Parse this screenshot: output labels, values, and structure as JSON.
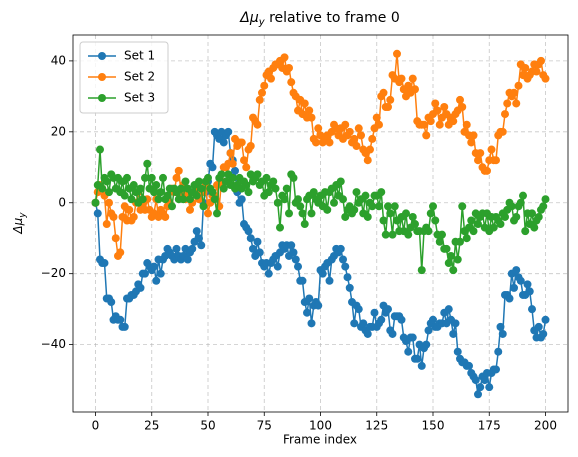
{
  "chart_data": {
    "type": "line",
    "title": {
      "symbol": "Δμ",
      "subscript": "y",
      "text": " relative to frame 0"
    },
    "xlabel": "Frame index",
    "ylabel": {
      "symbol": "Δμ",
      "subscript": "y"
    },
    "x": [
      0,
      1,
      2,
      3,
      4,
      5,
      6,
      7,
      8,
      9,
      10,
      11,
      12,
      13,
      14,
      15,
      16,
      17,
      18,
      19,
      20,
      21,
      22,
      23,
      24,
      25,
      26,
      27,
      28,
      29,
      30,
      31,
      32,
      33,
      34,
      35,
      36,
      37,
      38,
      39,
      40,
      41,
      42,
      43,
      44,
      45,
      46,
      47,
      48,
      49,
      50,
      51,
      52,
      53,
      54,
      55,
      56,
      57,
      58,
      59,
      60,
      61,
      62,
      63,
      64,
      65,
      66,
      67,
      68,
      69,
      70,
      71,
      72,
      73,
      74,
      75,
      76,
      77,
      78,
      79,
      80,
      81,
      82,
      83,
      84,
      85,
      86,
      87,
      88,
      89,
      90,
      91,
      92,
      93,
      94,
      95,
      96,
      97,
      98,
      99,
      100,
      101,
      102,
      103,
      104,
      105,
      106,
      107,
      108,
      109,
      110,
      111,
      112,
      113,
      114,
      115,
      116,
      117,
      118,
      119,
      120,
      121,
      122,
      123,
      124,
      125,
      126,
      127,
      128,
      129,
      130,
      131,
      132,
      133,
      134,
      135,
      136,
      137,
      138,
      139,
      140,
      141,
      142,
      143,
      144,
      145,
      146,
      147,
      148,
      149,
      150,
      151,
      152,
      153,
      154,
      155,
      156,
      157,
      158,
      159,
      160,
      161,
      162,
      163,
      164,
      165,
      166,
      167,
      168,
      169,
      170,
      171,
      172,
      173,
      174,
      175,
      176,
      177,
      178,
      179,
      180,
      181,
      182,
      183,
      184,
      185,
      186,
      187,
      188,
      189,
      190,
      191,
      192,
      193,
      194,
      195,
      196,
      197,
      198,
      199,
      200
    ],
    "series": [
      {
        "name": "Set 1",
        "color": "#1f77b4",
        "values": [
          0,
          -3,
          -16,
          -17,
          -17,
          -27,
          -27,
          -28,
          -33,
          -32,
          -33,
          -33,
          -35,
          -35,
          -27,
          -27,
          -26,
          -26,
          -25,
          -23,
          -24,
          -20,
          -20,
          -17,
          -18,
          -19,
          -18,
          -22,
          -16,
          -20,
          -16,
          -15,
          -13,
          -14,
          -15,
          -16,
          -13,
          -15,
          -16,
          -15,
          -13,
          -16,
          -14,
          -13,
          -11,
          -8,
          -10,
          -12,
          0,
          3,
          6,
          11,
          10,
          20,
          19,
          18,
          20,
          17,
          19,
          20,
          14,
          12,
          9,
          3,
          0,
          1,
          -6,
          -7,
          -8,
          -10,
          -13,
          -15,
          -11,
          -14,
          -17,
          -18,
          -17,
          -20,
          -17,
          -16,
          -15,
          -18,
          -14,
          -12,
          -13,
          -12,
          -15,
          -12,
          -14,
          -16,
          -18,
          -22,
          -22,
          -28,
          -31,
          -27,
          -34,
          -29,
          -28,
          -29,
          -19,
          -20,
          -18,
          -17,
          -22,
          -16,
          -15,
          -13,
          -14,
          -13,
          -16,
          -18,
          -21,
          -24,
          -28,
          -34,
          -29,
          -30,
          -35,
          -34,
          -36,
          -37,
          -35,
          -35,
          -31,
          -35,
          -34,
          -33,
          -29,
          -31,
          -30,
          -36,
          -37,
          -32,
          -32,
          -32,
          -33,
          -38,
          -39,
          -42,
          -38,
          -38,
          -44,
          -44,
          -40,
          -46,
          -41,
          -40,
          -36,
          -34,
          -33,
          -35,
          -35,
          -34,
          -34,
          -31,
          -34,
          -30,
          -33,
          -37,
          -34,
          -42,
          -44,
          -45,
          -45,
          -46,
          -46,
          -48,
          -49,
          -50,
          -54,
          -52,
          -49,
          -50,
          -48,
          -52,
          -48,
          -47,
          -47,
          -42,
          -35,
          -37,
          -26,
          -26,
          -27,
          -20,
          -24,
          -19,
          -21,
          -22,
          -26,
          -26,
          -23,
          -25,
          -30,
          -36,
          -38,
          -35,
          -38,
          -37,
          -33
        ]
      },
      {
        "name": "Set 2",
        "color": "#ff7f0e",
        "values": [
          0,
          3,
          5,
          4,
          2,
          -6,
          0,
          -3,
          -4,
          -10,
          -15,
          -14,
          -4,
          -1,
          -5,
          -2,
          -5,
          -4,
          0,
          3,
          -2,
          0,
          -2,
          1,
          -2,
          -4,
          -3,
          1,
          -4,
          -2,
          -3,
          -4,
          -1,
          0,
          4,
          3,
          7,
          9,
          3,
          5,
          1,
          3,
          -2,
          0,
          3,
          5,
          1,
          3,
          3,
          5,
          -3,
          0,
          2,
          2,
          5,
          -1,
          6,
          10,
          10,
          11,
          14,
          11,
          18,
          16,
          17,
          17,
          12,
          10,
          15,
          16,
          24,
          23,
          22,
          29,
          31,
          33,
          36,
          37,
          35,
          38,
          39,
          39,
          40,
          38,
          41,
          37,
          38,
          34,
          31,
          30,
          26,
          29,
          25,
          28,
          24,
          26,
          24,
          18,
          17,
          21,
          19,
          17,
          18,
          19,
          17,
          20,
          22,
          21,
          19,
          21,
          18,
          22,
          19,
          20,
          17,
          18,
          16,
          21,
          19,
          15,
          14,
          12,
          15,
          18,
          21,
          24,
          22,
          30,
          31,
          27,
          27,
          29,
          36,
          35,
          42,
          34,
          35,
          32,
          30,
          33,
          31,
          35,
          32,
          23,
          22,
          22,
          22,
          19,
          24,
          23,
          25,
          28,
          26,
          22,
          24,
          27,
          25,
          22,
          24,
          23,
          25,
          26,
          29,
          27,
          20,
          22,
          19,
          17,
          19,
          14,
          12,
          14,
          10,
          9,
          9,
          12,
          15,
          12,
          12,
          19,
          20,
          20,
          25,
          28,
          31,
          30,
          31,
          28,
          33,
          39,
          36,
          38,
          35,
          36,
          37,
          39,
          37,
          39,
          40,
          36,
          35
        ]
      },
      {
        "name": "Set 3",
        "color": "#2ca02c",
        "values": [
          0,
          5,
          15,
          4,
          7,
          6,
          3,
          8,
          7,
          4,
          7,
          3,
          6,
          2,
          7,
          4,
          1,
          5,
          3,
          0,
          4,
          1,
          7,
          11,
          4,
          7,
          3,
          5,
          1,
          3,
          7,
          1,
          2,
          4,
          -1,
          4,
          3,
          1,
          4,
          1,
          6,
          4,
          1,
          3,
          5,
          2,
          6,
          4,
          -1,
          6,
          7,
          4,
          3,
          1,
          -3,
          7,
          8,
          4,
          6,
          8,
          5,
          7,
          4,
          5,
          7,
          4,
          6,
          5,
          3,
          8,
          6,
          7,
          8,
          5,
          6,
          2,
          7,
          3,
          5,
          6,
          4,
          0,
          -7,
          2,
          1,
          4,
          -3,
          8,
          7,
          0,
          1,
          -1,
          -3,
          -6,
          1,
          2,
          -3,
          3,
          1,
          0,
          2,
          -1,
          3,
          -2,
          3,
          4,
          0,
          5,
          2,
          6,
          1,
          -4,
          -2,
          -1,
          -3,
          -2,
          3,
          0,
          1,
          -3,
          2,
          -4,
          0,
          -1,
          2,
          2,
          -1,
          3,
          -5,
          -9,
          -1,
          -3,
          -9,
          -1,
          -5,
          -8,
          -4,
          -8,
          -3,
          -9,
          -7,
          -4,
          -6,
          -8,
          -8,
          -19,
          -8,
          -7,
          -8,
          -3,
          -1,
          -5,
          -9,
          -11,
          -9,
          -13,
          -13,
          -17,
          -15,
          -19,
          -11,
          -16,
          -11,
          -1,
          -8,
          -10,
          -7,
          -5,
          -8,
          -3,
          -6,
          -4,
          -3,
          -7,
          -3,
          -8,
          -4,
          -7,
          -4,
          -5,
          -6,
          -3,
          -4,
          -2,
          0,
          -1,
          -5,
          -4,
          -1,
          0,
          2,
          -8,
          -3,
          -6,
          -3,
          -7,
          -5,
          -4,
          -2,
          -1,
          1
        ]
      }
    ],
    "xlim": [
      -10,
      210
    ],
    "ylim": [
      -59,
      47.3
    ],
    "xticks": [
      0,
      25,
      50,
      75,
      100,
      125,
      150,
      175,
      200
    ],
    "yticks": [
      {
        "value": -40,
        "label": "−40"
      },
      {
        "value": -20,
        "label": "−20"
      },
      0,
      20,
      40
    ],
    "grid": true,
    "legend": "upper left"
  }
}
